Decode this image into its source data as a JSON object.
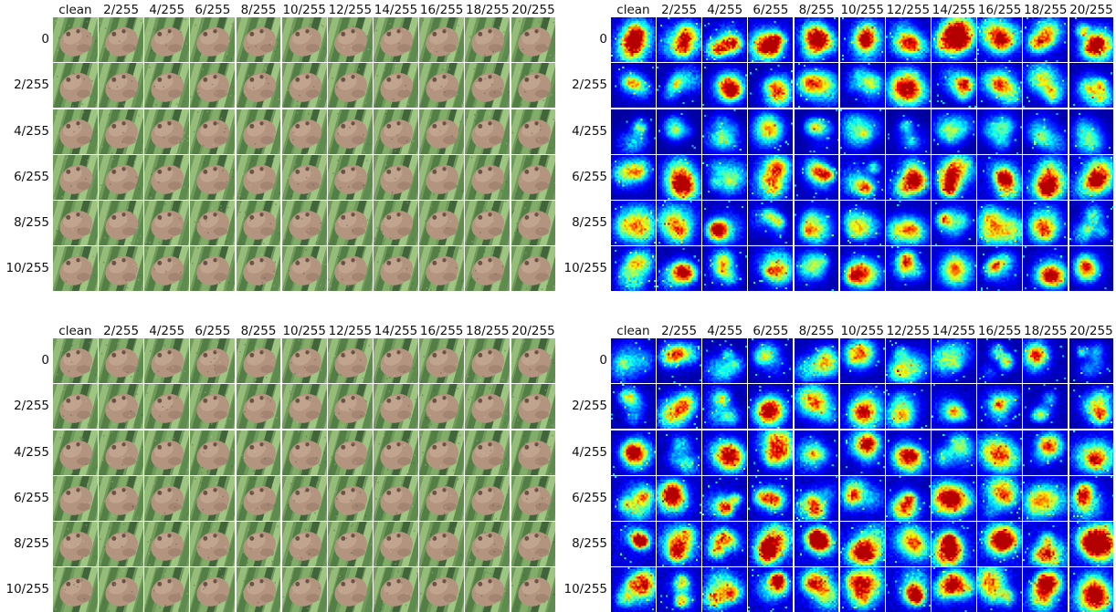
{
  "columns": [
    "clean",
    "2/255",
    "4/255",
    "6/255",
    "8/255",
    "10/255",
    "12/255",
    "14/255",
    "16/255",
    "18/255",
    "20/255"
  ],
  "rows": [
    "0",
    "2/255",
    "4/255",
    "6/255",
    "8/255",
    "10/255"
  ],
  "panels": [
    {
      "id": "top-left",
      "kind": "image",
      "image_subject": "frog"
    },
    {
      "id": "top-right",
      "kind": "heatmap",
      "colormap": "jet"
    },
    {
      "id": "bottom-left",
      "kind": "image",
      "image_subject": "frog"
    },
    {
      "id": "bottom-right",
      "kind": "heatmap",
      "colormap": "jet"
    }
  ],
  "colors": {
    "frog_body": "#b89a86",
    "leaf_light": "#9cc27e",
    "leaf_dark": "#3a5a34",
    "jet_low": "#00007f",
    "jet_high": "#ff0000",
    "grid_gap": "#ffffff"
  }
}
